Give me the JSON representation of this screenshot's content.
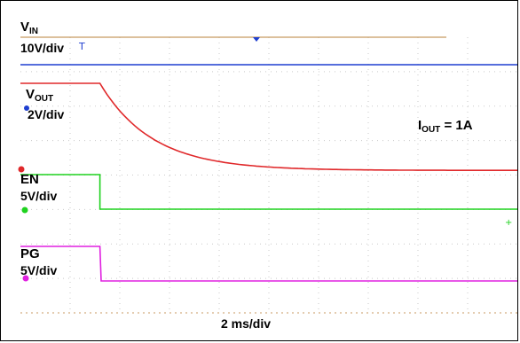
{
  "chart_data": {
    "type": "line",
    "title": "",
    "timebase": "2 ms/div",
    "x_range_ms": [
      0,
      20
    ],
    "annotation": {
      "main": "I",
      "sub": "OUT",
      "rest": " = 1A"
    },
    "series": [
      {
        "name": "VIN",
        "label_main": "V",
        "label_sub": "IN",
        "scale": "10V/div",
        "color": "#1f3fd0",
        "x_ms": [
          0,
          20
        ],
        "y_div": [
          0,
          0
        ]
      },
      {
        "name": "VOUT",
        "label_main": "V",
        "label_sub": "OUT",
        "scale": "2V/div",
        "color": "#e0282a",
        "x_ms": [
          0,
          3.2,
          4.0,
          5.0,
          6.0,
          7.0,
          8.0,
          9.0,
          10.0,
          11.0,
          12.0,
          20
        ],
        "y_div": [
          0,
          0,
          -0.75,
          -1.4,
          -1.85,
          -2.15,
          -2.32,
          -2.42,
          -2.47,
          -2.5,
          -2.52,
          -2.52
        ]
      },
      {
        "name": "EN",
        "label_main": "EN",
        "label_sub": "",
        "scale": "5V/div",
        "color": "#1fd21f",
        "x_ms": [
          0,
          3.2,
          3.2,
          20
        ],
        "y_div": [
          0,
          0,
          -1.0,
          -1.0
        ]
      },
      {
        "name": "PG",
        "label_main": "PG",
        "label_sub": "",
        "scale": "5V/div",
        "color": "#e020e0",
        "x_ms": [
          0,
          3.2,
          3.25,
          20
        ],
        "y_div": [
          0,
          0,
          -1.0,
          -1.0
        ]
      }
    ]
  }
}
